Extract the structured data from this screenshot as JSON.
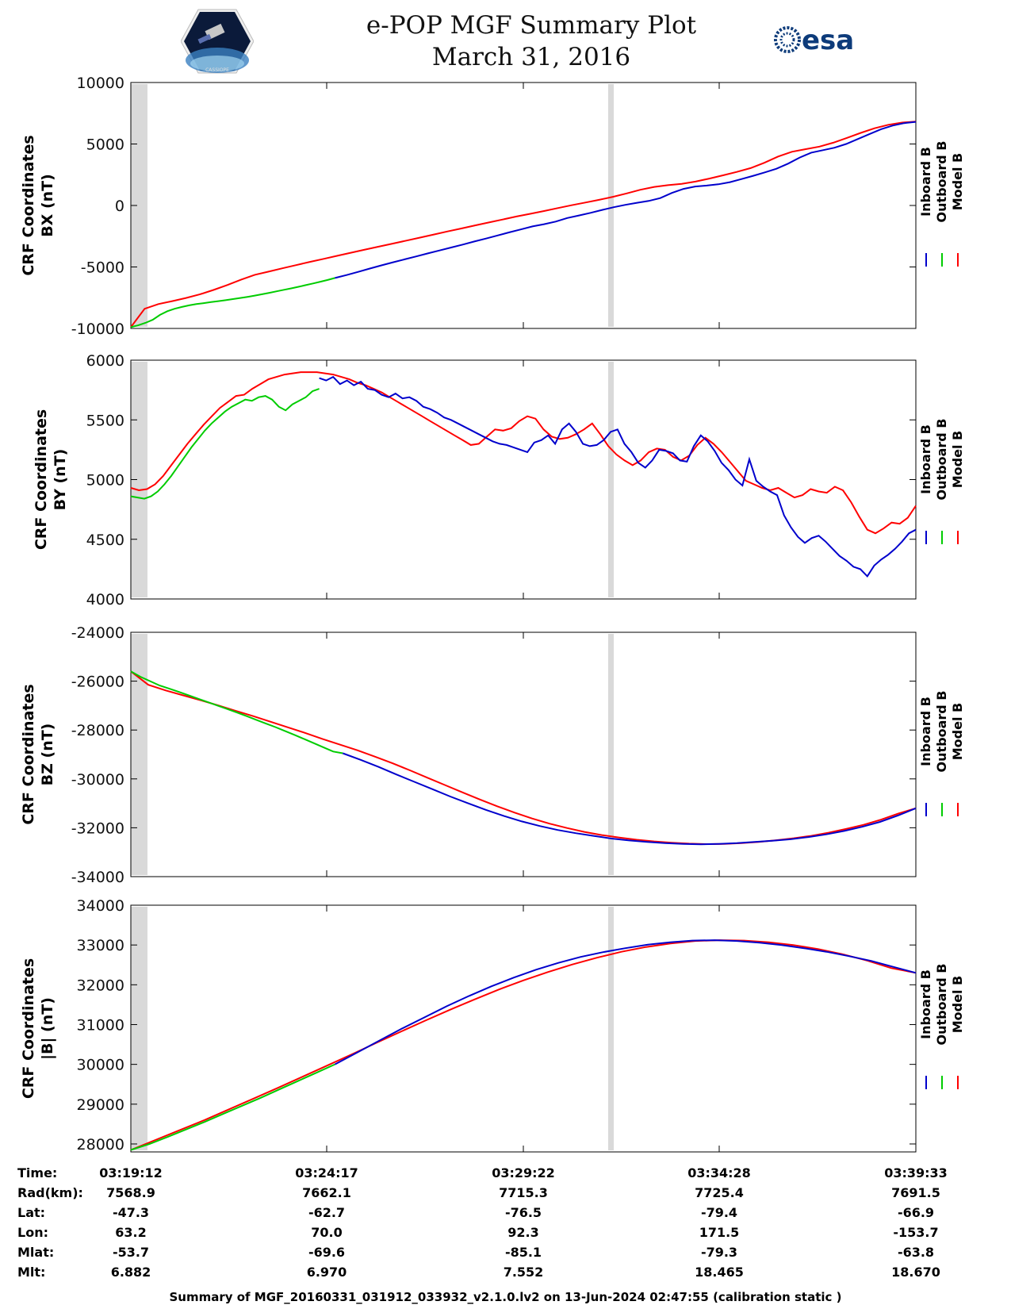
{
  "header": {
    "title": "e-POP MGF Summary Plot",
    "date": "March 31, 2016",
    "logo_left_text": "CASSIOPE",
    "logo_right_text": "esa"
  },
  "legend": [
    "Inboard B",
    "Outboard B",
    "Model B"
  ],
  "colors": {
    "inboard": "#0000cc",
    "outboard": "#00cc00",
    "model": "#ff0000",
    "gap": "#d9d9d9"
  },
  "chart_data": [
    {
      "type": "line",
      "ylabel": [
        "CRF Coordinates",
        "BX (nT)"
      ],
      "ylim": [
        -10000,
        10000
      ],
      "yticks": [
        10000,
        5000,
        0,
        -5000,
        -10000
      ],
      "ytick_labels": [
        "10000",
        "5000",
        "0",
        "-5000",
        "-10000"
      ],
      "x": [
        0,
        0.2,
        0.5,
        1,
        2,
        3,
        4,
        5,
        6,
        7,
        8,
        9,
        10,
        11,
        12,
        13,
        14,
        15,
        16,
        17,
        18,
        19,
        20,
        21,
        22,
        23,
        24,
        25,
        26,
        27,
        28,
        29,
        30,
        31,
        32,
        33,
        34,
        35,
        36,
        37,
        38,
        39,
        40,
        41,
        42,
        43,
        44,
        45,
        46,
        47,
        48,
        49,
        50,
        51,
        52,
        53,
        54,
        55,
        56,
        57,
        58,
        59,
        60,
        61,
        62,
        63,
        64,
        65,
        66,
        67,
        68,
        69,
        70,
        71,
        72,
        73,
        74,
        75,
        76,
        77,
        78,
        79,
        80,
        81,
        82,
        83,
        84,
        85,
        86,
        87,
        88,
        89,
        90,
        91,
        92,
        93,
        94,
        95,
        96,
        97,
        98,
        99,
        100
      ],
      "inboard": [
        -5900,
        -5660,
        -5400,
        -5130,
        -4870,
        -4620,
        -4380,
        -4140,
        -3900,
        -3660,
        -3420,
        -3180,
        -2930,
        -2690,
        -2440,
        -2190,
        -1950,
        -1700,
        -1520,
        -1310,
        -1020,
        -810,
        -600,
        -360,
        -140,
        50,
        220,
        370,
        600,
        1020,
        1350,
        1540,
        1620,
        1720,
        1900,
        2150,
        2410,
        2690,
        2990,
        3400,
        3900,
        4300,
        4500,
        4700,
        5000,
        5400,
        5800,
        6200,
        6500,
        6700,
        6800
      ],
      "outboard": [
        -9900,
        -9750,
        -9550,
        -9300,
        -8900,
        -8600,
        -8400,
        -8250,
        -8120,
        -8020,
        -7940,
        -7860,
        -7780,
        -7700,
        -7610,
        -7520,
        -7430,
        -7330,
        -7220,
        -7100,
        -6980,
        -6860,
        -6740,
        -6610,
        -6480,
        -6340,
        -6200,
        -6060,
        -5900
      ],
      "model": [
        -9900,
        -8400,
        -8020,
        -7780,
        -7520,
        -7230,
        -6870,
        -6470,
        -6040,
        -5640,
        -5380,
        -5110,
        -4850,
        -4590,
        -4340,
        -4090,
        -3840,
        -3590,
        -3350,
        -3100,
        -2860,
        -2610,
        -2360,
        -2110,
        -1870,
        -1620,
        -1380,
        -1140,
        -900,
        -680,
        -450,
        -210,
        20,
        240,
        460,
        700,
        980,
        1280,
        1510,
        1650,
        1760,
        1940,
        2190,
        2450,
        2730,
        3040,
        3470,
        3980,
        4370,
        4580,
        4790,
        5100,
        5500,
        5900,
        6280,
        6560,
        6740,
        6820
      ]
    },
    {
      "type": "line",
      "ylabel": [
        "CRF Coordinates",
        "BY (nT)"
      ],
      "ylim": [
        4000,
        6000
      ],
      "yticks": [
        6000,
        5500,
        5000,
        4500,
        4000
      ],
      "ytick_labels": [
        "6000",
        "5500",
        "5000",
        "4500",
        "4000"
      ],
      "inboard": [
        5850,
        5830,
        5860,
        5800,
        5830,
        5790,
        5820,
        5760,
        5750,
        5710,
        5690,
        5720,
        5680,
        5690,
        5660,
        5610,
        5590,
        5560,
        5520,
        5500,
        5470,
        5440,
        5410,
        5380,
        5350,
        5320,
        5300,
        5290,
        5270,
        5250,
        5230,
        5310,
        5330,
        5370,
        5300,
        5420,
        5470,
        5400,
        5300,
        5280,
        5290,
        5330,
        5400,
        5420,
        5300,
        5230,
        5140,
        5100,
        5160,
        5250,
        5240,
        5220,
        5160,
        5150,
        5280,
        5370,
        5320,
        5240,
        5140,
        5080,
        5000,
        4950,
        5170,
        4990,
        4940,
        4900,
        4870,
        4700,
        4600,
        4520,
        4470,
        4510,
        4530,
        4480,
        4420,
        4360,
        4320,
        4270,
        4250,
        4190,
        4280,
        4330,
        4370,
        4420,
        4480,
        4550,
        4580
      ],
      "outboard": [
        4860,
        4850,
        4840,
        4860,
        4900,
        4960,
        5030,
        5110,
        5190,
        5270,
        5340,
        5410,
        5470,
        5520,
        5570,
        5610,
        5640,
        5670,
        5660,
        5690,
        5700,
        5670,
        5610,
        5580,
        5630,
        5660,
        5690,
        5740,
        5760
      ],
      "model": [
        4930,
        4910,
        4920,
        4960,
        5030,
        5120,
        5210,
        5300,
        5380,
        5460,
        5530,
        5600,
        5650,
        5700,
        5710,
        5760,
        5800,
        5840,
        5860,
        5880,
        5890,
        5900,
        5900,
        5900,
        5890,
        5880,
        5860,
        5840,
        5810,
        5790,
        5760,
        5730,
        5690,
        5650,
        5610,
        5570,
        5530,
        5490,
        5450,
        5410,
        5370,
        5330,
        5290,
        5300,
        5360,
        5420,
        5410,
        5430,
        5490,
        5530,
        5510,
        5420,
        5360,
        5340,
        5350,
        5380,
        5420,
        5470,
        5380,
        5280,
        5210,
        5160,
        5120,
        5160,
        5230,
        5260,
        5250,
        5190,
        5160,
        5200,
        5290,
        5350,
        5300,
        5230,
        5150,
        5070,
        4990,
        4960,
        4930,
        4910,
        4930,
        4890,
        4850,
        4870,
        4920,
        4900,
        4890,
        4940,
        4910,
        4810,
        4690,
        4580,
        4550,
        4590,
        4640,
        4630,
        4680,
        4780
      ]
    },
    {
      "type": "line",
      "ylabel": [
        "CRF Coordinates",
        "BZ (nT)"
      ],
      "ylim": [
        -34000,
        -24000
      ],
      "yticks": [
        -24000,
        -26000,
        -28000,
        -30000,
        -32000,
        -34000
      ],
      "ytick_labels": [
        "-24000",
        "-26000",
        "-28000",
        "-30000",
        "-32000",
        "-34000"
      ],
      "inboard": [
        -28950,
        -29220,
        -29510,
        -29820,
        -30120,
        -30420,
        -30720,
        -31000,
        -31270,
        -31520,
        -31740,
        -31930,
        -32090,
        -32220,
        -32330,
        -32440,
        -32520,
        -32580,
        -32630,
        -32660,
        -32680,
        -32660,
        -32630,
        -32580,
        -32530,
        -32470,
        -32380,
        -32270,
        -32130,
        -31960,
        -31760,
        -31500,
        -31200
      ],
      "outboard": [
        -25600,
        -25820,
        -26000,
        -26180,
        -26310,
        -26440,
        -26580,
        -26720,
        -26860,
        -27000,
        -27140,
        -27280,
        -27430,
        -27580,
        -27730,
        -27880,
        -28040,
        -28200,
        -28370,
        -28540,
        -28710,
        -28880,
        -28950
      ],
      "model": [
        -25600,
        -26150,
        -26380,
        -26580,
        -26780,
        -26990,
        -27210,
        -27430,
        -27660,
        -27890,
        -28120,
        -28370,
        -28600,
        -28830,
        -29090,
        -29360,
        -29650,
        -29950,
        -30250,
        -30550,
        -30840,
        -31120,
        -31380,
        -31620,
        -31830,
        -32010,
        -32170,
        -32300,
        -32400,
        -32490,
        -32560,
        -32610,
        -32650,
        -32670,
        -32660,
        -32630,
        -32580,
        -32510,
        -32430,
        -32330,
        -32200,
        -32050,
        -31880,
        -31670,
        -31420,
        -31200
      ]
    },
    {
      "type": "line",
      "ylabel": [
        "CRF Coordinates",
        "|B| (nT)"
      ],
      "ylim": [
        27800,
        34000
      ],
      "yticks": [
        34000,
        33000,
        32000,
        31000,
        30000,
        29000,
        28000
      ],
      "ytick_labels": [
        "34000",
        "33000",
        "32000",
        "31000",
        "30000",
        "29000",
        "28000"
      ],
      "inboard": [
        30000,
        30300,
        30600,
        30900,
        31180,
        31460,
        31720,
        31960,
        32180,
        32380,
        32550,
        32700,
        32820,
        32920,
        33010,
        33070,
        33110,
        33120,
        33100,
        33060,
        33000,
        32920,
        32830,
        32720,
        32600,
        32450,
        32300
      ],
      "outboard": [
        27850,
        28000,
        28180,
        28370,
        28560,
        28760,
        28960,
        29160,
        29370,
        29580,
        29790,
        30000
      ],
      "model": [
        27850,
        28100,
        28350,
        28600,
        28870,
        29140,
        29410,
        29690,
        29970,
        30250,
        30540,
        30820,
        31100,
        31370,
        31630,
        31880,
        32110,
        32320,
        32510,
        32680,
        32830,
        32950,
        33040,
        33100,
        33120,
        33110,
        33070,
        33000,
        32900,
        32770,
        32610,
        32420,
        32300
      ]
    }
  ],
  "x_axis": {
    "row_labels": [
      "Time:",
      "Rad(km):",
      "Lat:",
      "Lon:",
      "Mlat:",
      "Mlt:"
    ],
    "columns": [
      [
        "03:19:12",
        "7568.9",
        "-47.3",
        "63.2",
        "-53.7",
        "6.882"
      ],
      [
        "03:24:17",
        "7662.1",
        "-62.7",
        "70.0",
        "-69.6",
        "6.970"
      ],
      [
        "03:29:22",
        "7715.3",
        "-76.5",
        "92.3",
        "-85.1",
        "7.552"
      ],
      [
        "03:34:28",
        "7725.4",
        "-79.4",
        "171.5",
        "-79.3",
        "18.465"
      ],
      [
        "03:39:33",
        "7691.5",
        "-66.9",
        "-153.7",
        "-63.8",
        "18.670"
      ]
    ]
  },
  "footer": "Summary of MGF_20160331_031912_033932_v2.1.0.lv2 on 13-Jun-2024 02:47:55 (calibration static )"
}
